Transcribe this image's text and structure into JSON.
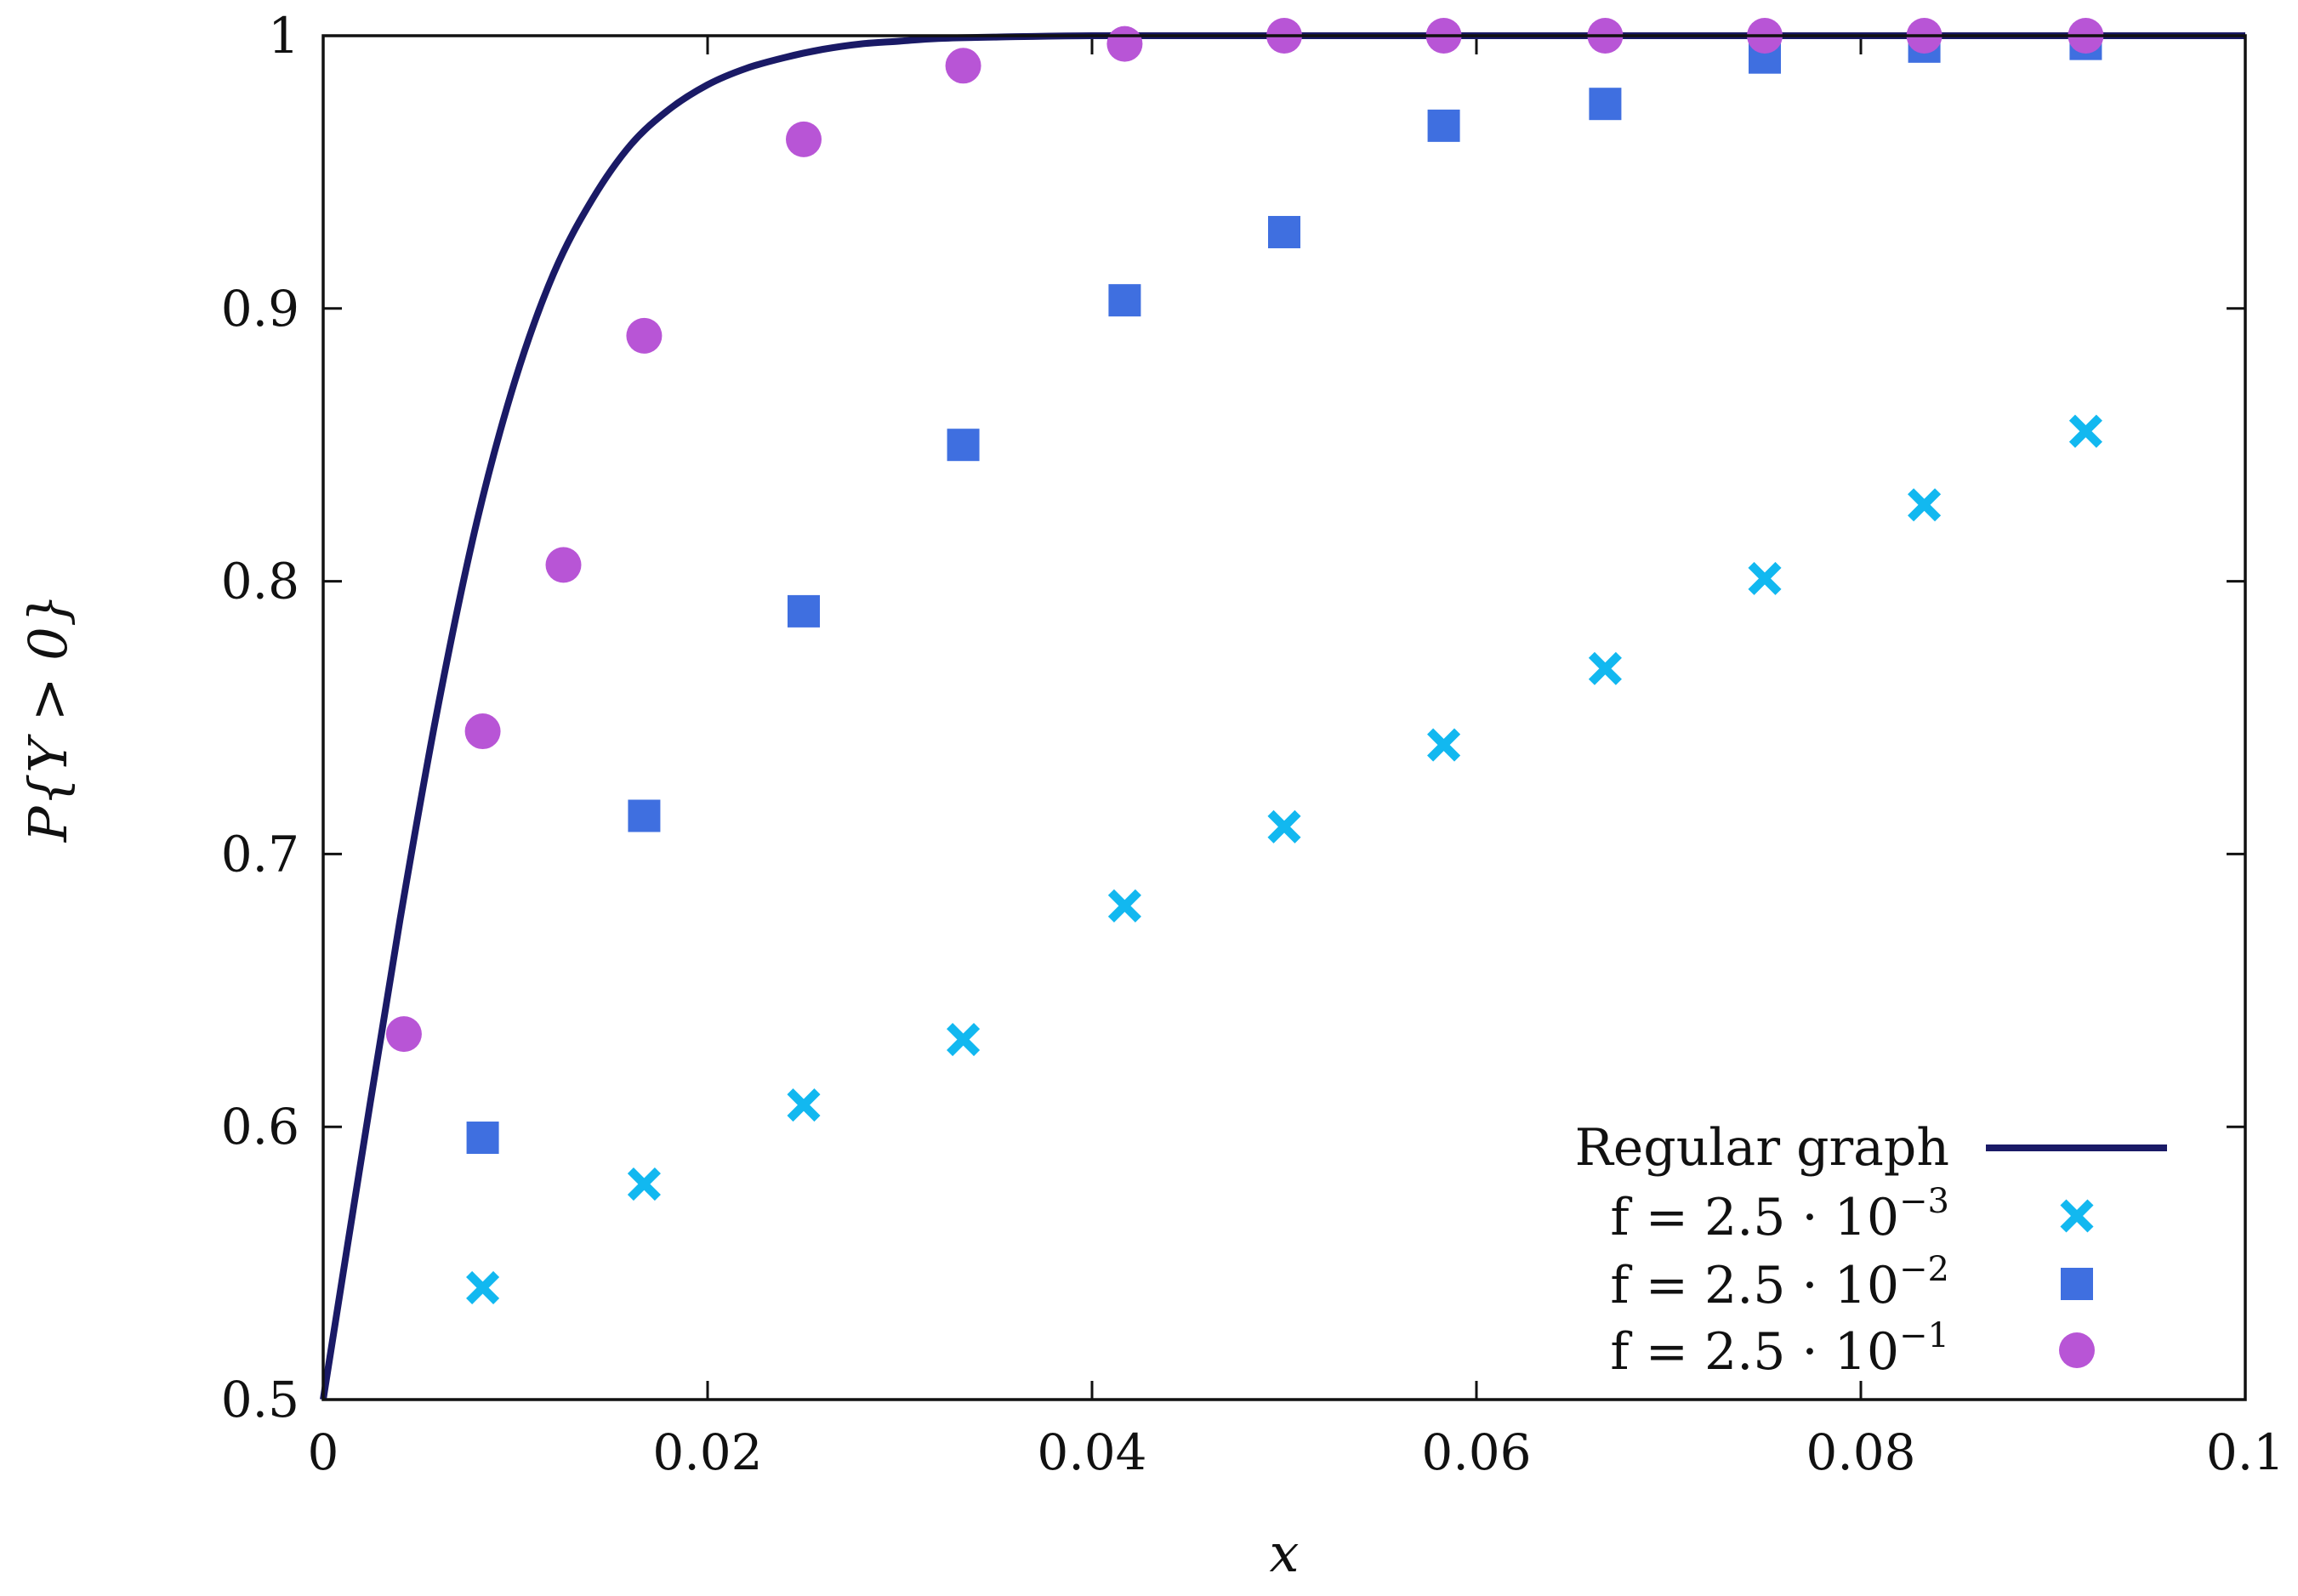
{
  "chart_data": {
    "type": "scatter",
    "title": "",
    "xlabel": "x",
    "ylabel": "P{Y > 0}",
    "xlim": [
      0,
      0.1
    ],
    "ylim": [
      0.5,
      1.0
    ],
    "x_ticks": [
      "0",
      "0.02",
      "0.04",
      "0.06",
      "0.08",
      "0.1"
    ],
    "y_ticks": [
      "0.5",
      "0.6",
      "0.7",
      "0.8",
      "0.9",
      "1"
    ],
    "grid": false,
    "legend_position": "bottom-right",
    "line_series": {
      "name": "Regular graph",
      "color": "#1a1a66",
      "x": [
        0,
        0.002,
        0.004,
        0.006,
        0.008,
        0.01,
        0.012,
        0.014,
        0.016,
        0.018,
        0.02,
        0.022,
        0.024,
        0.026,
        0.028,
        0.03,
        0.032,
        0.035,
        0.04,
        0.05,
        0.06,
        0.07,
        0.08,
        0.09,
        0.1
      ],
      "values": [
        0.5,
        0.589,
        0.676,
        0.755,
        0.822,
        0.874,
        0.913,
        0.94,
        0.96,
        0.973,
        0.982,
        0.988,
        0.992,
        0.995,
        0.997,
        0.998,
        0.999,
        0.9995,
        1.0,
        1.0,
        1.0,
        1.0,
        1.0,
        1.0,
        1.0
      ]
    },
    "series": [
      {
        "name": "f = 2.5 · 10^-3",
        "legend_base": "f = 2.5 · 10",
        "legend_exp": "−3",
        "marker": "x",
        "color": "#12b8f0",
        "x": [
          0.0083,
          0.0167,
          0.025,
          0.0333,
          0.0417,
          0.05,
          0.0583,
          0.0667,
          0.075,
          0.0833,
          0.0917
        ],
        "values": [
          0.541,
          0.579,
          0.608,
          0.632,
          0.681,
          0.71,
          0.74,
          0.768,
          0.801,
          0.828,
          0.855
        ]
      },
      {
        "name": "f = 2.5 · 10^-2",
        "legend_base": "f = 2.5 · 10",
        "legend_exp": "−2",
        "marker": "square",
        "color": "#3f6fe0",
        "x": [
          0.0083,
          0.0167,
          0.025,
          0.0333,
          0.0417,
          0.05,
          0.0583,
          0.0667,
          0.075,
          0.0833,
          0.0917
        ],
        "values": [
          0.596,
          0.714,
          0.789,
          0.85,
          0.903,
          0.928,
          0.967,
          0.975,
          0.992,
          0.996,
          0.997
        ]
      },
      {
        "name": "f = 2.5 · 10^-1",
        "legend_base": "f = 2.5 · 10",
        "legend_exp": "−1",
        "marker": "circle",
        "color": "#b855d6",
        "x": [
          0.0042,
          0.0083,
          0.0125,
          0.0167,
          0.025,
          0.0333,
          0.0417,
          0.05,
          0.0583,
          0.0667,
          0.075,
          0.0833,
          0.0917
        ],
        "values": [
          0.634,
          0.745,
          0.806,
          0.89,
          0.962,
          0.989,
          0.997,
          1.0,
          1.0,
          1.0,
          1.0,
          1.0,
          1.0
        ]
      }
    ]
  }
}
